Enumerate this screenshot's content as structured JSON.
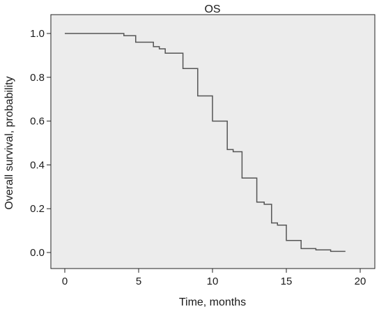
{
  "chart_data": {
    "type": "line",
    "title": "OS",
    "xlabel": "Time, months",
    "ylabel": "Overall survival, probability",
    "xlim": [
      0,
      20
    ],
    "ylim": [
      0.0,
      1.0
    ],
    "x_ticks": [
      0,
      5,
      10,
      15,
      20
    ],
    "y_ticks": [
      0.0,
      0.2,
      0.4,
      0.6,
      0.8,
      1.0
    ],
    "x_tick_labels": [
      "0",
      "5",
      "10",
      "15",
      "20"
    ],
    "y_tick_labels": [
      "0.0",
      "0.2",
      "0.4",
      "0.6",
      "0.8",
      "1.0"
    ],
    "grid": false,
    "step": true,
    "colors": {
      "plot_background": "#ececec",
      "line": "#555555",
      "axis": "#222222"
    },
    "series": [
      {
        "x": [
          0,
          4.0,
          4.8,
          6.0,
          6.4,
          6.8,
          7.2,
          8.0,
          9.0,
          10.0,
          11.0,
          11.4,
          12.0,
          13.0,
          13.5,
          14.0,
          14.4,
          15.0,
          16.0,
          17.0,
          18.0,
          19.0
        ],
        "y": [
          1.0,
          0.99,
          0.96,
          0.94,
          0.93,
          0.91,
          0.91,
          0.84,
          0.715,
          0.6,
          0.47,
          0.46,
          0.34,
          0.23,
          0.22,
          0.135,
          0.125,
          0.055,
          0.018,
          0.012,
          0.005,
          0.005
        ]
      }
    ]
  }
}
